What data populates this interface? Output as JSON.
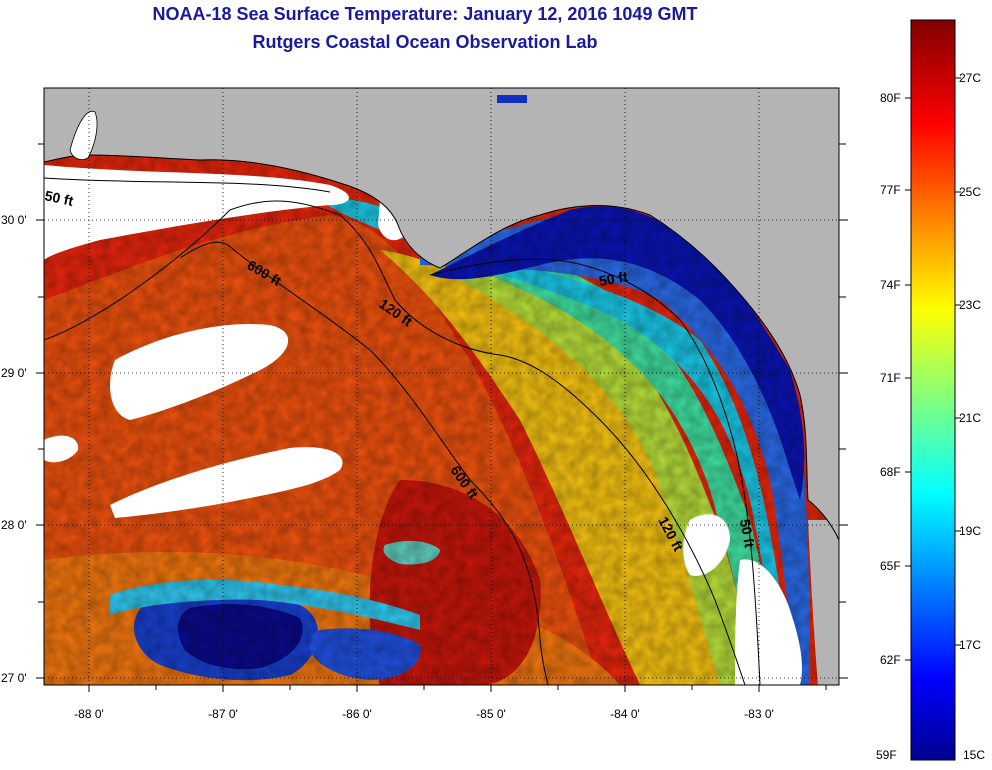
{
  "title": "NOAA-18 Sea Surface Temperature:  January 12, 2016 1049 GMT",
  "subtitle": "Rutgers Coastal Ocean Observation Lab",
  "axes": {
    "lon_labels": [
      "-88 0'",
      "-87 0'",
      "-86 0'",
      "-85 0'",
      "-84 0'",
      "-83 0'"
    ],
    "lat_labels": [
      "30 0'",
      "29 0'",
      "28 0'",
      "27 0'"
    ]
  },
  "contours": {
    "label_50": "50 ft",
    "label_120": "120 ft",
    "label_600": "600 ft"
  },
  "colorbar": {
    "fahrenheit": [
      "80F",
      "77F",
      "74F",
      "71F",
      "68F",
      "65F",
      "62F",
      "59F"
    ],
    "celsius": [
      "27C",
      "25C",
      "23C",
      "21C",
      "19C",
      "17C",
      "15C"
    ],
    "min_c": 15,
    "max_c": 28.5
  },
  "colors": {
    "land": "#b4b4b4",
    "title": "#1a1a9c",
    "cloud": "#ffffff"
  }
}
